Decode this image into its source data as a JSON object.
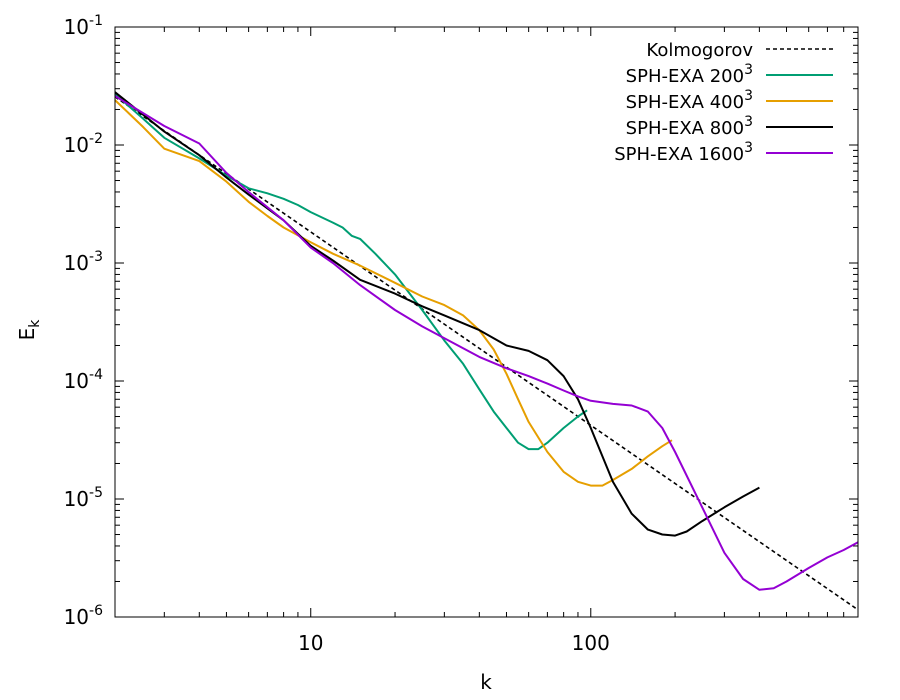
{
  "chart_data": {
    "type": "line",
    "title": "",
    "xlabel": "k",
    "ylabel": "E",
    "ylabel_sub": "k",
    "xscale": "log",
    "yscale": "log",
    "xlim": [
      2,
      900
    ],
    "ylim": [
      1e-06,
      0.1
    ],
    "x_ticks": [
      {
        "value": 10,
        "label": "10"
      },
      {
        "value": 100,
        "label": "100"
      }
    ],
    "y_ticks": [
      {
        "value": 0.1,
        "base": "10",
        "exp": "-1"
      },
      {
        "value": 0.01,
        "base": "10",
        "exp": "-2"
      },
      {
        "value": 0.001,
        "base": "10",
        "exp": "-3"
      },
      {
        "value": 0.0001,
        "base": "10",
        "exp": "-4"
      },
      {
        "value": 1e-05,
        "base": "10",
        "exp": "-5"
      },
      {
        "value": 1e-06,
        "base": "10",
        "exp": "-6"
      }
    ],
    "legend_position": "top-right",
    "series": [
      {
        "name": "Kolmogorov",
        "label_base": "Kolmogorov",
        "label_sup": "",
        "color": "#000000",
        "dashed": true,
        "x": [
          2,
          900
        ],
        "y": [
          0.0256,
          1.15e-06
        ]
      },
      {
        "name": "SPH-EXA 200^3",
        "label_base": "SPH-EXA 200",
        "label_sup": "3",
        "color": "#009e73",
        "dashed": false,
        "x": [
          2,
          2.5,
          3,
          4,
          5,
          6,
          7,
          8,
          9,
          10,
          12,
          13,
          14,
          15,
          17,
          20,
          25,
          30,
          35,
          40,
          45,
          50,
          55,
          60,
          65,
          70,
          80,
          90,
          97
        ],
        "y": [
          0.027,
          0.017,
          0.0115,
          0.0077,
          0.0055,
          0.0043,
          0.0039,
          0.0035,
          0.0031,
          0.0027,
          0.0022,
          0.002,
          0.0017,
          0.0016,
          0.0012,
          0.0008,
          0.0004,
          0.00022,
          0.00014,
          8.5e-05,
          5.5e-05,
          4e-05,
          3e-05,
          2.65e-05,
          2.65e-05,
          3e-05,
          4e-05,
          5e-05,
          5.65e-05
        ]
      },
      {
        "name": "SPH-EXA 400^3",
        "label_base": "SPH-EXA 400",
        "label_sup": "3",
        "color": "#e69f00",
        "dashed": false,
        "x": [
          2,
          2.5,
          3,
          4,
          5,
          6,
          7,
          8,
          10,
          12,
          15,
          20,
          25,
          30,
          35,
          40,
          45,
          50,
          55,
          60,
          70,
          80,
          90,
          100,
          110,
          120,
          140,
          160,
          180,
          195
        ],
        "y": [
          0.024,
          0.0145,
          0.0093,
          0.0073,
          0.0049,
          0.0033,
          0.0025,
          0.002,
          0.0015,
          0.0012,
          0.00095,
          0.00068,
          0.00052,
          0.00044,
          0.00036,
          0.00027,
          0.000185,
          0.000115,
          7e-05,
          4.5e-05,
          2.5e-05,
          1.7e-05,
          1.4e-05,
          1.3e-05,
          1.3e-05,
          1.45e-05,
          1.8e-05,
          2.3e-05,
          2.8e-05,
          3.15e-05
        ]
      },
      {
        "name": "SPH-EXA 800^3",
        "label_base": "SPH-EXA 800",
        "label_sup": "3",
        "color": "#000000",
        "dashed": false,
        "x": [
          2,
          3,
          4,
          5,
          6,
          8,
          10,
          12,
          15,
          20,
          25,
          30,
          40,
          50,
          60,
          70,
          80,
          90,
          100,
          110,
          120,
          140,
          160,
          180,
          200,
          220,
          250,
          300,
          350,
          400
        ],
        "y": [
          0.028,
          0.013,
          0.0082,
          0.0053,
          0.0038,
          0.0023,
          0.0014,
          0.00105,
          0.00072,
          0.00055,
          0.00043,
          0.00036,
          0.00027,
          0.0002,
          0.00018,
          0.00015,
          0.00011,
          7e-05,
          4e-05,
          2.3e-05,
          1.4e-05,
          7.5e-06,
          5.5e-06,
          5e-06,
          4.9e-06,
          5.3e-06,
          6.5e-06,
          8.5e-06,
          1.05e-05,
          1.25e-05
        ]
      },
      {
        "name": "SPH-EXA 1600^3",
        "label_base": "SPH-EXA 1600",
        "label_sup": "3",
        "color": "#9400d3",
        "dashed": false,
        "x": [
          2,
          3,
          4,
          5,
          6,
          8,
          10,
          12,
          15,
          20,
          25,
          30,
          40,
          50,
          60,
          70,
          80,
          90,
          100,
          120,
          140,
          160,
          180,
          200,
          250,
          300,
          350,
          400,
          450,
          500,
          600,
          700,
          800,
          900
        ],
        "y": [
          0.026,
          0.0145,
          0.0103,
          0.0058,
          0.004,
          0.0023,
          0.00135,
          0.001,
          0.00065,
          0.0004,
          0.00029,
          0.00023,
          0.00016,
          0.000128,
          0.00011,
          9.5e-05,
          8.3e-05,
          7.4e-05,
          6.8e-05,
          6.4e-05,
          6.2e-05,
          5.5e-05,
          4e-05,
          2.5e-05,
          8.5e-06,
          3.5e-06,
          2.1e-06,
          1.7e-06,
          1.75e-06,
          2e-06,
          2.6e-06,
          3.2e-06,
          3.7e-06,
          4.3e-06
        ]
      }
    ]
  }
}
